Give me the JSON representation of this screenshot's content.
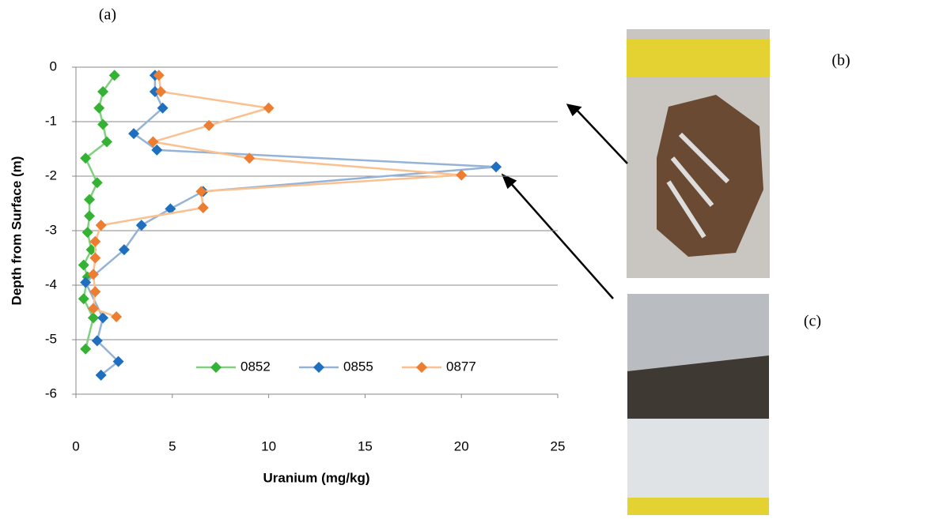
{
  "chart_data": {
    "type": "line",
    "panel_labels": [
      "(a)",
      "(b)",
      "(c)"
    ],
    "xlabel": "Uranium (mg/kg)",
    "ylabel": "Depth from Surface (m)",
    "xlim": [
      0,
      25
    ],
    "xticks": [
      0,
      5,
      10,
      15,
      20,
      25
    ],
    "ylim": [
      -6,
      0
    ],
    "yticks": [
      0,
      -1,
      -2,
      -3,
      -4,
      -5,
      -6
    ],
    "grid": true,
    "legend": "bottom-right",
    "series": [
      {
        "name": "0852",
        "color": "#33b233",
        "line_color": "#7fd07f",
        "x": [
          2.0,
          1.4,
          1.2,
          1.4,
          1.6,
          0.5,
          1.1,
          0.7,
          0.7,
          0.6,
          0.8,
          0.4,
          0.6,
          0.4,
          0.9,
          0.5
        ],
        "values": [
          -0.15,
          -0.45,
          -0.75,
          -1.05,
          -1.37,
          -1.67,
          -2.12,
          -2.43,
          -2.73,
          -3.03,
          -3.35,
          -3.63,
          -3.85,
          -4.25,
          -4.6,
          -5.17
        ]
      },
      {
        "name": "0855",
        "color": "#1f6fc0",
        "line_color": "#95b3d7",
        "x": [
          4.1,
          4.1,
          4.5,
          3.0,
          4.2,
          21.8,
          6.6,
          4.9,
          3.4,
          2.5,
          0.5,
          1.4,
          1.1,
          2.2,
          1.3
        ],
        "values": [
          -0.15,
          -0.45,
          -0.75,
          -1.22,
          -1.52,
          -1.83,
          -2.28,
          -2.6,
          -2.9,
          -3.35,
          -3.95,
          -4.6,
          -5.02,
          -5.4,
          -5.65
        ]
      },
      {
        "name": "0877",
        "color": "#ed7d31",
        "line_color": "#fac090",
        "x": [
          4.3,
          4.4,
          10.0,
          6.9,
          4.0,
          9.0,
          20.0,
          6.5,
          6.6,
          1.3,
          1.0,
          1.0,
          0.9,
          1.0,
          0.9,
          2.1
        ],
        "values": [
          -0.15,
          -0.45,
          -0.75,
          -1.07,
          -1.37,
          -1.67,
          -1.98,
          -2.28,
          -2.58,
          -2.9,
          -3.2,
          -3.5,
          -3.8,
          -4.12,
          -4.43,
          -4.58
        ]
      }
    ]
  }
}
